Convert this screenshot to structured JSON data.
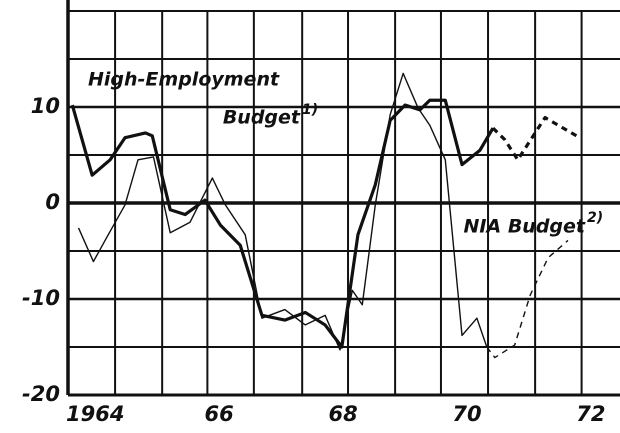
{
  "chart_data": {
    "type": "line",
    "xlim": [
      1963.56,
      1972.47
    ],
    "ylim": [
      -20,
      20
    ],
    "xticks": [
      {
        "value": 1964,
        "label": "1964"
      },
      {
        "value": 1966,
        "label": "66"
      },
      {
        "value": 1968,
        "label": "68"
      },
      {
        "value": 1970,
        "label": "70"
      },
      {
        "value": 1972,
        "label": "72"
      }
    ],
    "yticks": [
      -20,
      -10,
      0,
      10
    ],
    "ygrid": [
      -15,
      -5,
      5,
      15,
      20
    ],
    "xgrid": [
      1964.32,
      1965.08,
      1965.81,
      1966.56,
      1967.34,
      1968.08,
      1968.84,
      1969.58,
      1970.34,
      1971.1,
      1971.85
    ],
    "grid": true,
    "series": [
      {
        "name": "High-Employment Budget",
        "label_lines": [
          "High-Employment",
          "Budget"
        ],
        "footnote": "1)",
        "color": "#111",
        "width": 3.2,
        "x": [
          1963.63,
          1963.95,
          1964.24,
          1964.48,
          1964.81,
          1964.92,
          1965.21,
          1965.45,
          1965.77,
          1966.02,
          1966.34,
          1966.69,
          1967.06,
          1967.39,
          1967.71,
          1967.98,
          1968.24,
          1968.52,
          1968.76,
          1969.0,
          1969.24,
          1969.4,
          1969.65,
          1969.92,
          1970.21,
          1970.42
        ],
        "values": [
          10.2,
          2.9,
          4.5,
          6.8,
          7.3,
          7,
          -0.7,
          -1.2,
          0.3,
          -2.3,
          -4.4,
          -11.7,
          -12.2,
          -11.4,
          -12.7,
          -15,
          -3.3,
          1.9,
          8.6,
          10.2,
          9.7,
          10.7,
          10.7,
          4,
          5.5,
          7.8
        ],
        "projected_x": [
          1970.42,
          1970.61,
          1970.82,
          1971.26,
          1971.82
        ],
        "projected_values": [
          7.8,
          6.6,
          4.5,
          8.9,
          6.8
        ]
      },
      {
        "name": "NIA Budget",
        "label_lines": [
          "NIA Budget"
        ],
        "footnote": "2)",
        "color": "#111",
        "width": 1.4,
        "x": [
          1963.73,
          1963.97,
          1964.21,
          1964.48,
          1964.69,
          1964.94,
          1965.21,
          1965.53,
          1965.89,
          1966.1,
          1966.42,
          1966.69,
          1967.06,
          1967.39,
          1967.71,
          1967.95,
          1968.15,
          1968.31,
          1968.52,
          1968.76,
          1968.97,
          1969.21,
          1969.4,
          1969.65,
          1969.92,
          1970.16,
          1970.32
        ],
        "values": [
          -2.6,
          -6.1,
          -3.3,
          -0.2,
          4.5,
          4.8,
          -3.1,
          -2,
          2.6,
          -0.2,
          -3.3,
          -12,
          -11.1,
          -12.7,
          -11.7,
          -15.3,
          -9.1,
          -10.6,
          -0.2,
          9.2,
          13.5,
          9.9,
          8.1,
          4.5,
          -13.8,
          -12,
          -15
        ],
        "projected_x": [
          1970.32,
          1970.45,
          1970.77,
          1971.02,
          1971.31,
          1971.63
        ],
        "projected_values": [
          -15,
          -16.1,
          -14.8,
          -9.6,
          -5.7,
          -3.9
        ]
      }
    ]
  }
}
